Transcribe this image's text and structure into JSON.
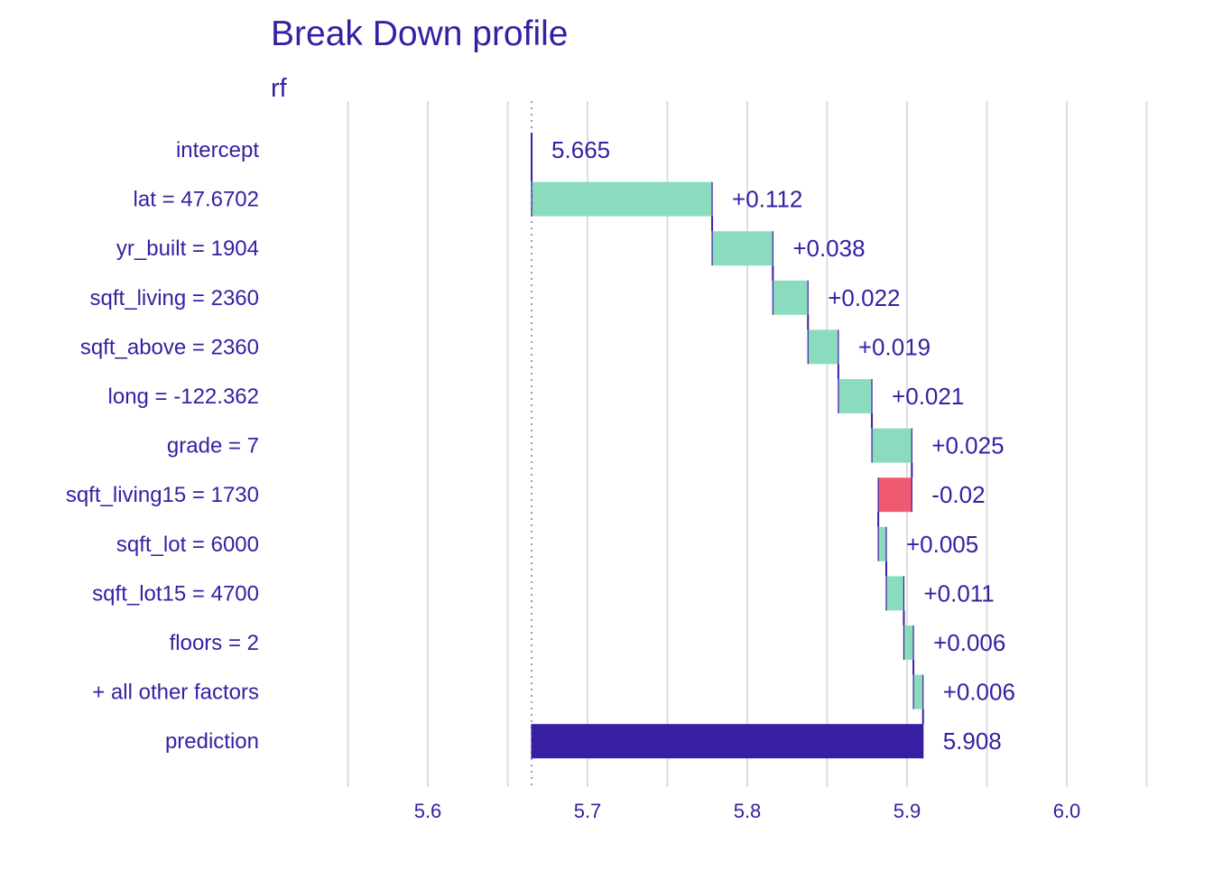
{
  "chart_data": {
    "type": "waterfall",
    "title": "Break Down profile",
    "subtitle": "rf",
    "xlabel": "",
    "ylabel": "",
    "xlim": [
      5.535,
      6.05
    ],
    "x_ticks": [
      5.6,
      5.7,
      5.8,
      5.9,
      6.0
    ],
    "x_tick_labels": [
      "5.6",
      "5.7",
      "5.8",
      "5.9",
      "6.0"
    ],
    "x_minor_gridlines": [
      5.55,
      5.65,
      5.75,
      5.85,
      5.95,
      6.05
    ],
    "baseline": 5.665,
    "grid": "vertical",
    "legend": "none",
    "rows": [
      {
        "label": "intercept",
        "start": 5.665,
        "end": 5.665,
        "value_label": "5.665",
        "kind": "intercept"
      },
      {
        "label": "lat = 47.6702",
        "start": 5.665,
        "end": 5.778,
        "value_label": "+0.112",
        "kind": "positive"
      },
      {
        "label": "yr_built = 1904",
        "start": 5.778,
        "end": 5.816,
        "value_label": "+0.038",
        "kind": "positive"
      },
      {
        "label": "sqft_living = 2360",
        "start": 5.816,
        "end": 5.838,
        "value_label": "+0.022",
        "kind": "positive"
      },
      {
        "label": "sqft_above = 2360",
        "start": 5.838,
        "end": 5.857,
        "value_label": "+0.019",
        "kind": "positive"
      },
      {
        "label": "long = -122.362",
        "start": 5.857,
        "end": 5.878,
        "value_label": "+0.021",
        "kind": "positive"
      },
      {
        "label": "grade = 7",
        "start": 5.878,
        "end": 5.903,
        "value_label": "+0.025",
        "kind": "positive"
      },
      {
        "label": "sqft_living15 = 1730",
        "start": 5.903,
        "end": 5.882,
        "value_label": "-0.02",
        "kind": "negative"
      },
      {
        "label": "sqft_lot = 6000",
        "start": 5.882,
        "end": 5.887,
        "value_label": "+0.005",
        "kind": "positive"
      },
      {
        "label": "sqft_lot15 = 4700",
        "start": 5.887,
        "end": 5.898,
        "value_label": "+0.011",
        "kind": "positive"
      },
      {
        "label": "floors = 2",
        "start": 5.898,
        "end": 5.904,
        "value_label": "+0.006",
        "kind": "positive"
      },
      {
        "label": "+ all other factors",
        "start": 5.904,
        "end": 5.91,
        "value_label": "+0.006",
        "kind": "positive"
      },
      {
        "label": "prediction",
        "start": 5.665,
        "end": 5.91,
        "value_label": "5.908",
        "kind": "prediction"
      }
    ],
    "colors": {
      "text": "#371ea3",
      "positive": "#8bdcbe",
      "negative": "#f05a71",
      "prediction": "#371ea3",
      "connector": "#371ea3",
      "grid": "#dddddd",
      "baseline_line": "#9a92cc"
    }
  }
}
